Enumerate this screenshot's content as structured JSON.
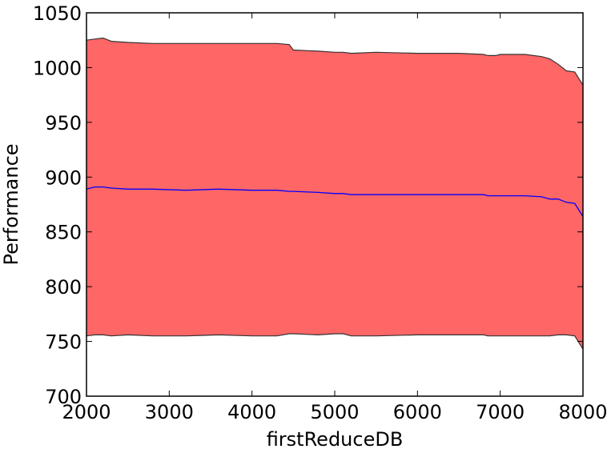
{
  "chart_data": {
    "type": "area",
    "title": "",
    "xlabel": "firstReduceDB",
    "ylabel": "Performance",
    "xlim": [
      2000,
      8000
    ],
    "ylim": [
      700,
      1050
    ],
    "xticks": [
      2000,
      3000,
      4000,
      5000,
      6000,
      7000,
      8000
    ],
    "yticks": [
      700,
      750,
      800,
      850,
      900,
      950,
      1000,
      1050
    ],
    "grid": false,
    "legend": "none",
    "colors": {
      "band_fill": "#ff6666",
      "band_edge": "#333333",
      "mean_line": "#0000ff"
    },
    "x": [
      2000,
      2100,
      2200,
      2300,
      2500,
      2800,
      3200,
      3600,
      4000,
      4300,
      4450,
      4500,
      4800,
      5000,
      5100,
      5200,
      5500,
      6000,
      6500,
      6800,
      6850,
      6950,
      7000,
      7300,
      7500,
      7600,
      7700,
      7800,
      7900,
      8000
    ],
    "series": [
      {
        "role": "upper",
        "values": [
          1025,
          1026,
          1027,
          1024,
          1023,
          1022,
          1022,
          1022,
          1022,
          1022,
          1021,
          1016,
          1015,
          1014,
          1014,
          1013,
          1014,
          1013,
          1013,
          1012,
          1011,
          1011,
          1012,
          1012,
          1010,
          1008,
          1003,
          997,
          996,
          984
        ]
      },
      {
        "role": "mean",
        "values": [
          889,
          891,
          891,
          890,
          889,
          889,
          888,
          889,
          888,
          888,
          887,
          887,
          886,
          885,
          885,
          884,
          884,
          884,
          884,
          884,
          883,
          883,
          883,
          883,
          882,
          880,
          880,
          877,
          876,
          864
        ]
      },
      {
        "role": "lower",
        "values": [
          755,
          756,
          756,
          755,
          756,
          755,
          755,
          756,
          755,
          755,
          757,
          757,
          756,
          757,
          757,
          755,
          755,
          756,
          756,
          756,
          755,
          755,
          755,
          755,
          755,
          755,
          756,
          756,
          755,
          743
        ]
      }
    ]
  }
}
